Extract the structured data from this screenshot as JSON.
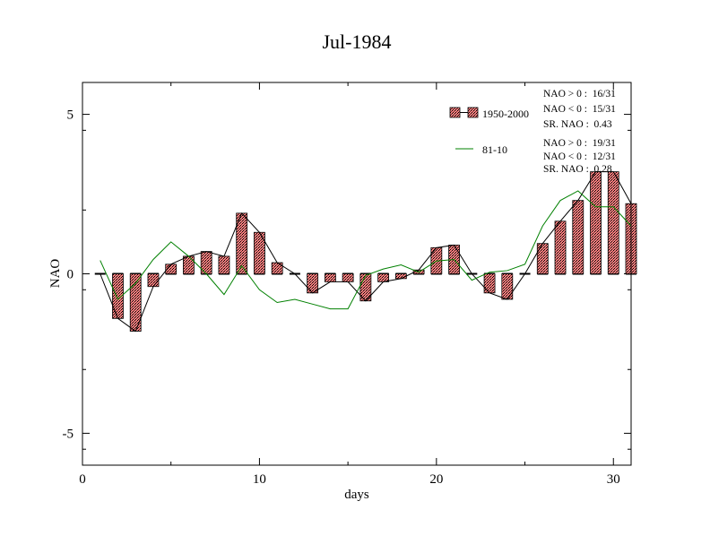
{
  "chart_data": {
    "type": "bar",
    "title": "Jul-1984",
    "xlabel": "days",
    "ylabel": "NAO",
    "xlim": [
      0,
      31
    ],
    "ylim": [
      -6,
      6
    ],
    "x_ticks": [
      0,
      10,
      20,
      30
    ],
    "x_tick_labels": [
      "0",
      "10",
      "20",
      "30"
    ],
    "y_ticks": [
      -5,
      0,
      5
    ],
    "y_tick_labels": [
      "-5",
      "0",
      "5"
    ],
    "grid": false,
    "legend_position": "top-right",
    "days": [
      1,
      2,
      3,
      4,
      5,
      6,
      7,
      8,
      9,
      10,
      11,
      12,
      13,
      14,
      15,
      16,
      17,
      18,
      19,
      20,
      21,
      22,
      23,
      24,
      25,
      26,
      27,
      28,
      29,
      30,
      31
    ],
    "series": [
      {
        "name": "1950-2000",
        "kind": "bar",
        "color": "#ff8080",
        "values": [
          0.0,
          -1.4,
          -1.8,
          -0.4,
          0.3,
          0.55,
          0.7,
          0.55,
          1.9,
          1.3,
          0.35,
          0.0,
          -0.6,
          -0.25,
          -0.25,
          -0.85,
          -0.25,
          -0.15,
          0.12,
          0.82,
          0.9,
          0.0,
          -0.6,
          -0.8,
          0.0,
          0.95,
          1.65,
          2.3,
          3.2,
          3.2,
          2.2
        ]
      },
      {
        "name": "81-10",
        "kind": "line",
        "color": "#008000",
        "values": [
          0.42,
          -0.8,
          -0.3,
          0.45,
          1.0,
          0.55,
          0.0,
          -0.65,
          0.25,
          -0.5,
          -0.9,
          -0.8,
          -0.95,
          -1.1,
          -1.1,
          -0.05,
          0.15,
          0.28,
          0.05,
          0.4,
          0.45,
          -0.2,
          0.05,
          0.1,
          0.3,
          1.5,
          2.3,
          2.6,
          2.1,
          2.1,
          1.5
        ]
      }
    ],
    "legend": [
      {
        "label": "1950-2000",
        "stats": [
          "NAO > 0 :  16/31",
          "NAO < 0 :  15/31",
          "SR. NAO :  0.43"
        ]
      },
      {
        "label": "81-10",
        "stats": [
          "NAO > 0 :  19/31",
          "NAO < 0 :  12/31",
          "SR. NAO :  0.28"
        ]
      }
    ]
  }
}
